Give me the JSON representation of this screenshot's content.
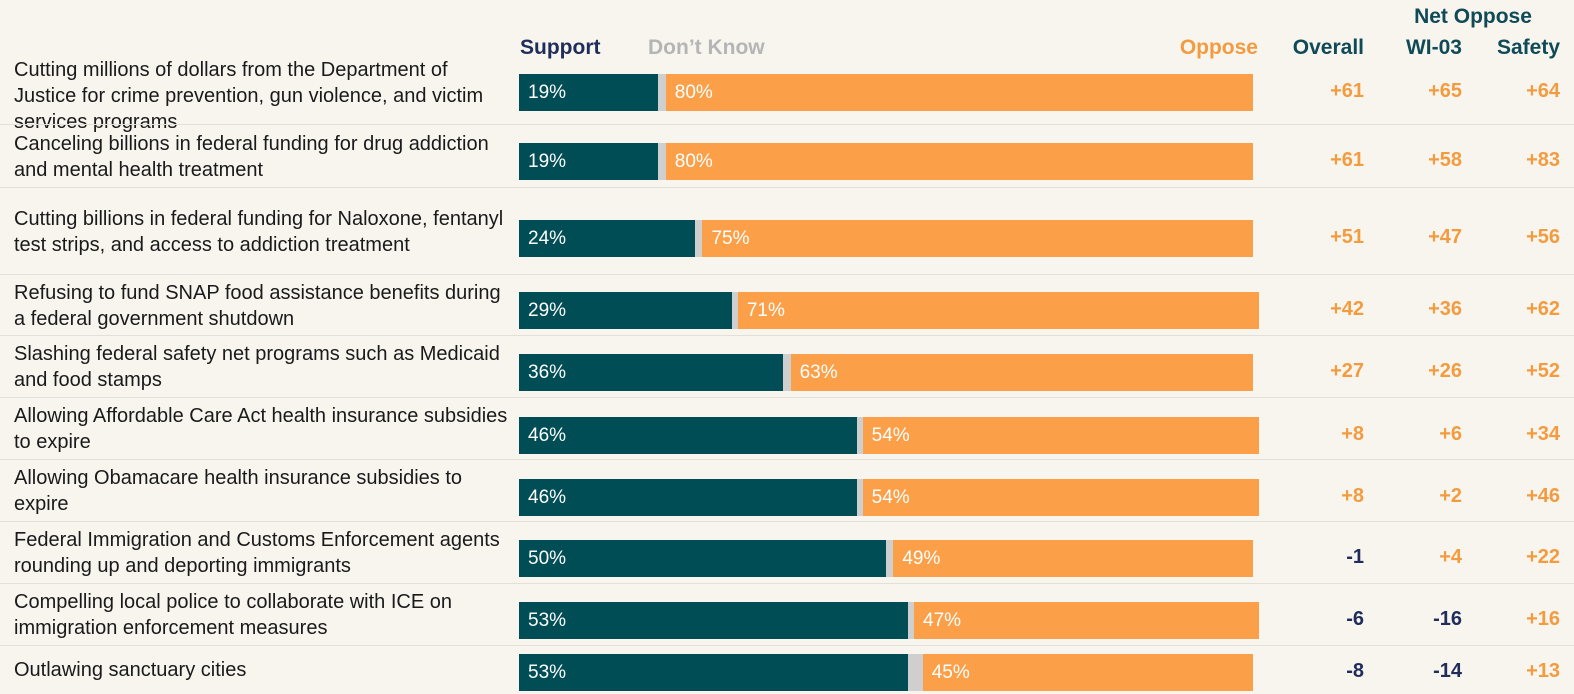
{
  "chart_data": {
    "type": "bar",
    "orientation": "horizontal",
    "stacked": true,
    "legend": [
      "Support",
      "Don’t Know",
      "Oppose"
    ],
    "net_header": "Net Oppose",
    "net_columns": [
      "Overall",
      "WI-03",
      "Safety"
    ],
    "colors": {
      "support": "#004d55",
      "dont_know": "#cfcfcf",
      "oppose": "#fba049",
      "net_positive": "#f39b3f",
      "net_negative": "#1f2d5a"
    },
    "rows": [
      {
        "label": "Cutting millions of dollars from the Department of Justice for crime prevention, gun violence, and victim services programs",
        "support": 19,
        "oppose": 80,
        "support_label": "19%",
        "oppose_label": "80%",
        "net": [
          "+61",
          "+65",
          "+64"
        ]
      },
      {
        "label": "Canceling billions in federal funding for drug addiction and mental health treatment",
        "support": 19,
        "oppose": 80,
        "support_label": "19%",
        "oppose_label": "80%",
        "net": [
          "+61",
          "+58",
          "+83"
        ]
      },
      {
        "label": "Cutting billions in federal funding for Naloxone, fentanyl test strips, and access to addiction treatment",
        "support": 24,
        "oppose": 75,
        "support_label": "24%",
        "oppose_label": "75%",
        "net": [
          "+51",
          "+47",
          "+56"
        ]
      },
      {
        "label": "Refusing to fund SNAP food assistance benefits during a federal government shutdown",
        "support": 29,
        "oppose": 71,
        "support_label": "29%",
        "oppose_label": "71%",
        "net": [
          "+42",
          "+36",
          "+62"
        ]
      },
      {
        "label": "Slashing federal safety net programs such as Medicaid and food stamps",
        "support": 36,
        "oppose": 63,
        "support_label": "36%",
        "oppose_label": "63%",
        "net": [
          "+27",
          "+26",
          "+52"
        ]
      },
      {
        "label": "Allowing Affordable Care Act health insurance subsidies to expire",
        "support": 46,
        "oppose": 54,
        "support_label": "46%",
        "oppose_label": "54%",
        "net": [
          "+8",
          "+6",
          "+34"
        ]
      },
      {
        "label": "Allowing Obamacare health insurance subsidies to expire",
        "support": 46,
        "oppose": 54,
        "support_label": "46%",
        "oppose_label": "54%",
        "net": [
          "+8",
          "+2",
          "+46"
        ]
      },
      {
        "label": "Federal Immigration and Customs Enforcement agents rounding up and deporting immigrants",
        "support": 50,
        "oppose": 49,
        "support_label": "50%",
        "oppose_label": "49%",
        "net": [
          "-1",
          "+4",
          "+22"
        ]
      },
      {
        "label": "Compelling local police to collaborate with ICE on immigration enforcement measures",
        "support": 53,
        "oppose": 47,
        "support_label": "53%",
        "oppose_label": "47%",
        "net": [
          "-6",
          "-16",
          "+16"
        ]
      },
      {
        "label": "Outlawing sanctuary cities",
        "support": 53,
        "oppose": 45,
        "support_label": "53%",
        "oppose_label": "45%",
        "net": [
          "-8",
          "-14",
          "+13"
        ]
      }
    ]
  }
}
